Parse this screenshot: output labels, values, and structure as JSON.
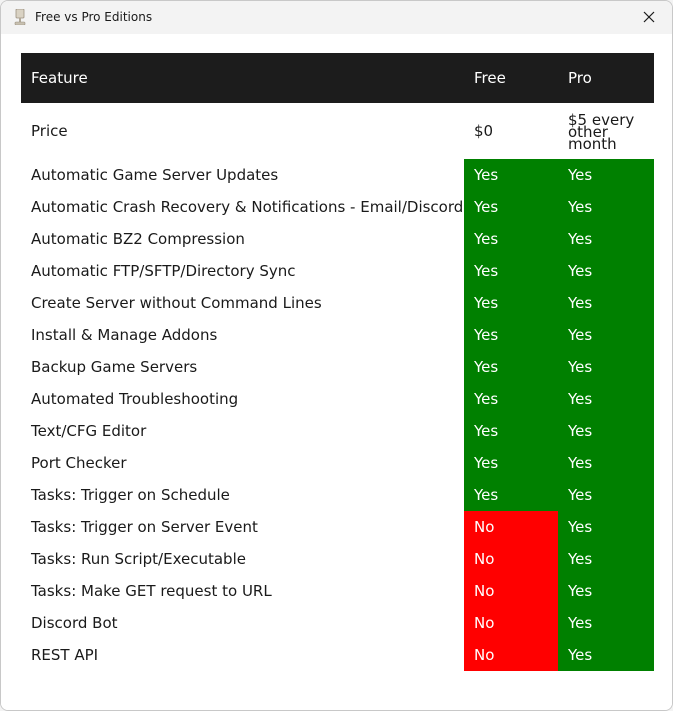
{
  "window": {
    "title": "Free vs Pro Editions"
  },
  "table": {
    "headers": {
      "feature": "Feature",
      "free": "Free",
      "pro": "Pro"
    },
    "price": {
      "label": "Price",
      "free": "$0",
      "pro": "$5 every other month"
    },
    "rows": [
      {
        "feature": "Automatic Game Server Updates",
        "free": "Yes",
        "pro": "Yes"
      },
      {
        "feature": "Automatic Crash Recovery & Notifications - Email/Discord",
        "free": "Yes",
        "pro": "Yes"
      },
      {
        "feature": "Automatic BZ2 Compression",
        "free": "Yes",
        "pro": "Yes"
      },
      {
        "feature": "Automatic FTP/SFTP/Directory Sync",
        "free": "Yes",
        "pro": "Yes"
      },
      {
        "feature": "Create Server without Command Lines",
        "free": "Yes",
        "pro": "Yes"
      },
      {
        "feature": "Install & Manage Addons",
        "free": "Yes",
        "pro": "Yes"
      },
      {
        "feature": "Backup Game Servers",
        "free": "Yes",
        "pro": "Yes"
      },
      {
        "feature": "Automated Troubleshooting",
        "free": "Yes",
        "pro": "Yes"
      },
      {
        "feature": "Text/CFG Editor",
        "free": "Yes",
        "pro": "Yes"
      },
      {
        "feature": "Port Checker",
        "free": "Yes",
        "pro": "Yes"
      },
      {
        "feature": "Tasks: Trigger on Schedule",
        "free": "Yes",
        "pro": "Yes"
      },
      {
        "feature": "Tasks: Trigger on Server Event",
        "free": "No",
        "pro": "Yes"
      },
      {
        "feature": "Tasks: Run Script/Executable",
        "free": "No",
        "pro": "Yes"
      },
      {
        "feature": "Tasks: Make GET request to URL",
        "free": "No",
        "pro": "Yes"
      },
      {
        "feature": "Discord Bot",
        "free": "No",
        "pro": "Yes"
      },
      {
        "feature": "REST API",
        "free": "No",
        "pro": "Yes"
      }
    ]
  },
  "colors": {
    "yes": "#008000",
    "no": "#ff0000",
    "header_bg": "#1c1c1c"
  },
  "icons": {
    "app": "app-icon",
    "close": "close-icon"
  }
}
